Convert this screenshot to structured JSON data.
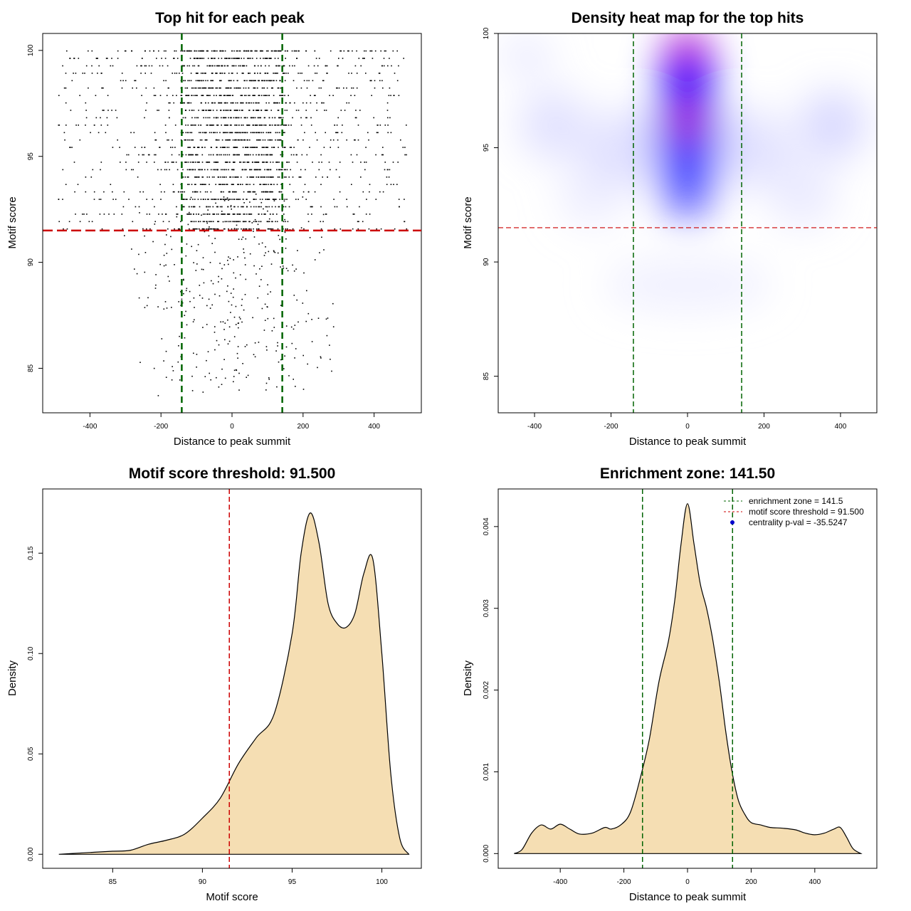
{
  "colors": {
    "green": "#006400",
    "red": "#cc0000",
    "density_fill": "#f5deb3",
    "heat_low": "#ffffff",
    "heat_mid": "#0000ff",
    "heat_high": "#ff0000"
  },
  "chart_data": [
    {
      "type": "scatter",
      "title": "Top hit for each peak",
      "xlabel": "Distance to peak summit",
      "ylabel": "Motif score",
      "xlim": [
        -533,
        533
      ],
      "ylim": [
        82.9,
        100.8
      ],
      "xticks": [
        -400,
        -200,
        0,
        200,
        400
      ],
      "xtick_labels": [
        "-400",
        "-200",
        "0",
        "200",
        "400"
      ],
      "yticks": [
        85,
        90,
        95,
        100
      ],
      "ytick_labels": [
        "85",
        "90",
        "95",
        "100"
      ],
      "vlines": [
        -141.5,
        141.5
      ],
      "hline": 91.5,
      "points_note": "approx. 2500 top hits; dense between -140 and 140, scores 91-100",
      "point_count": 2600
    },
    {
      "type": "heatmap",
      "title": "Density heat map for the top hits",
      "xlabel": "Distance to peak summit",
      "ylabel": "Motif score",
      "xlim": [
        -495,
        495
      ],
      "ylim": [
        83.4,
        100
      ],
      "xticks": [
        -400,
        -200,
        0,
        200,
        400
      ],
      "xtick_labels": [
        "-400",
        "-200",
        "0",
        "200",
        "400"
      ],
      "yticks": [
        85,
        90,
        95,
        100
      ],
      "ytick_labels": [
        "85",
        "90",
        "95",
        "100"
      ],
      "vlines": [
        -141.5,
        141.5
      ],
      "hline": 91.5,
      "hotspots": [
        {
          "x": 0,
          "y": 99.4,
          "intensity": 1.0
        },
        {
          "x": 0,
          "y": 96.2,
          "intensity": 1.0
        }
      ]
    },
    {
      "type": "area",
      "title": "Motif score threshold: 91.500",
      "xlabel": "Motif score",
      "ylabel": "Density",
      "xlim": [
        81.1,
        102.2
      ],
      "ylim": [
        -0.007,
        0.182
      ],
      "xticks": [
        85,
        90,
        95,
        100
      ],
      "xtick_labels": [
        "85",
        "90",
        "95",
        "100"
      ],
      "yticks": [
        0,
        0.05,
        0.1,
        0.15
      ],
      "ytick_labels": [
        "0.00",
        "0.05",
        "0.10",
        "0.15"
      ],
      "vline": 91.5,
      "x": [
        82,
        83,
        84,
        85,
        86,
        87,
        88,
        89,
        90,
        91,
        92,
        93,
        94,
        95,
        95.5,
        96,
        96.5,
        97,
        97.5,
        98,
        98.5,
        99,
        99.5,
        100,
        100.5,
        101,
        101.5
      ],
      "y": [
        0.0,
        0.0005,
        0.001,
        0.0015,
        0.002,
        0.005,
        0.007,
        0.01,
        0.018,
        0.028,
        0.045,
        0.058,
        0.07,
        0.11,
        0.15,
        0.17,
        0.155,
        0.125,
        0.115,
        0.113,
        0.12,
        0.14,
        0.147,
        0.1,
        0.04,
        0.008,
        0.0
      ]
    },
    {
      "type": "area",
      "title": "Enrichment zone: 141.50",
      "xlabel": "Distance to peak summit",
      "ylabel": "Density",
      "xlim": [
        -595,
        595
      ],
      "ylim": [
        -0.00018,
        0.00446
      ],
      "xticks": [
        -400,
        -200,
        0,
        200,
        400
      ],
      "xtick_labels": [
        "-400",
        "-200",
        "0",
        "200",
        "400"
      ],
      "yticks": [
        0,
        0.001,
        0.002,
        0.003,
        0.004
      ],
      "ytick_labels": [
        "0.000",
        "0.001",
        "0.002",
        "0.003",
        "0.004"
      ],
      "vlines": [
        -141.5,
        141.5
      ],
      "x": [
        -545,
        -520,
        -490,
        -460,
        -430,
        -400,
        -370,
        -340,
        -300,
        -260,
        -240,
        -210,
        -180,
        -150,
        -120,
        -90,
        -60,
        -40,
        -20,
        0,
        20,
        40,
        60,
        80,
        100,
        120,
        140,
        160,
        180,
        200,
        230,
        260,
        300,
        340,
        370,
        400,
        430,
        460,
        480,
        500,
        520,
        545
      ],
      "y": [
        0.0,
        5e-05,
        0.00025,
        0.00035,
        0.0003,
        0.00036,
        0.0003,
        0.00024,
        0.00025,
        0.00032,
        0.0003,
        0.00035,
        0.0005,
        0.0009,
        0.0014,
        0.0021,
        0.0026,
        0.0031,
        0.0038,
        0.00428,
        0.0038,
        0.0033,
        0.003,
        0.0026,
        0.0021,
        0.0015,
        0.001,
        0.00065,
        0.00048,
        0.00038,
        0.00035,
        0.00032,
        0.00031,
        0.00029,
        0.00025,
        0.00023,
        0.00025,
        0.0003,
        0.00032,
        0.0002,
        6e-05,
        0.0
      ],
      "legend": [
        {
          "label": "enrichment zone = 141.5",
          "style": "dashed",
          "color": "#006400"
        },
        {
          "label": "motif score threshold = 91.500",
          "style": "dashed",
          "color": "#cc0000"
        },
        {
          "label": "centrality p-val = -35.5247",
          "style": "dot",
          "color": "#0000cc"
        }
      ],
      "legend_position": "top-right"
    }
  ]
}
